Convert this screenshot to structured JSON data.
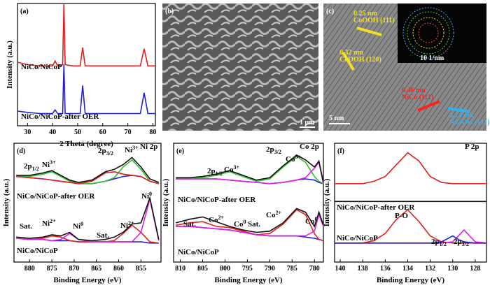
{
  "chart_data": [
    {
      "type": "line",
      "panel": "(a)",
      "xlabel": "2 Theta (degree)",
      "ylabel": "Intensity (a.u.)",
      "xlim": [
        26,
        81
      ],
      "xticks": [
        30,
        40,
        50,
        60,
        70,
        80
      ],
      "ylim": [
        0,
        100
      ],
      "x": [
        26,
        30,
        35,
        40,
        41,
        42,
        44,
        44.5,
        45,
        48,
        51,
        52,
        53,
        60,
        70,
        75,
        76.5,
        78,
        81
      ],
      "series": [
        {
          "color": "#e02020",
          "values": [
            52,
            50,
            49,
            49,
            53,
            49,
            50,
            100,
            50,
            49,
            49,
            64,
            49,
            49,
            49,
            49,
            63,
            49,
            49
          ]
        },
        {
          "color": "#2020d0",
          "values": [
            12,
            11,
            10,
            10,
            13,
            10,
            10,
            50,
            10,
            10,
            10,
            33,
            10,
            10,
            10,
            10,
            27,
            10,
            10
          ]
        }
      ],
      "annotations": [
        {
          "text": "NiCo/NiCoP"
        },
        {
          "text": "NiCo/NiCoP-after OER"
        }
      ]
    },
    {
      "type": "line",
      "panel": "(d)",
      "xlabel": "Binding Energy (eV)",
      "ylabel": "Intensity (a.u.)",
      "xlim": [
        883.5,
        850.5
      ],
      "xticks": [
        880,
        875,
        870,
        865,
        860,
        855
      ],
      "ylim": [
        0,
        100
      ],
      "x": [
        883,
        880,
        877,
        875,
        873,
        871,
        869,
        866,
        863,
        861,
        859,
        857,
        855,
        853,
        851
      ],
      "series": [
        {
          "color": "#2020d0",
          "values": [
            72,
            71,
            70,
            69,
            68,
            67,
            66,
            66,
            68,
            70,
            72,
            73,
            72,
            68,
            66
          ]
        },
        {
          "color": "#30c030",
          "values": [
            72,
            72,
            74,
            76,
            72,
            68,
            66,
            66,
            68,
            71,
            80,
            86,
            78,
            68,
            66
          ]
        },
        {
          "color": "#e02020",
          "values": [
            72,
            71,
            70,
            69,
            68,
            67,
            66,
            68,
            75,
            76,
            74,
            73,
            72,
            68,
            66
          ]
        },
        {
          "color": "#111111",
          "values": [
            73,
            73,
            75,
            77,
            73,
            69,
            67,
            69,
            76,
            78,
            82,
            88,
            80,
            70,
            67
          ]
        },
        {
          "color": "#2020d0",
          "values": [
            20,
            19,
            19,
            18,
            18,
            18,
            17,
            17,
            17,
            17,
            17,
            17,
            17,
            16,
            16
          ]
        },
        {
          "color": "#e02020",
          "values": [
            20,
            19,
            20,
            22,
            21,
            18,
            17,
            17,
            17,
            18,
            24,
            31,
            25,
            17,
            16
          ]
        },
        {
          "color": "#e020e0",
          "values": [
            20,
            19,
            19,
            18,
            19,
            24,
            19,
            17,
            17,
            17,
            17,
            17,
            25,
            53,
            18
          ]
        },
        {
          "color": "#111111",
          "values": [
            21,
            20,
            21,
            23,
            22,
            25,
            19,
            18,
            19,
            21,
            25,
            32,
            33,
            54,
            19
          ]
        }
      ],
      "annotations": [
        {
          "text": "Ni 2p"
        },
        {
          "text": "2p",
          "sub": "1/2"
        },
        {
          "text": "Ni",
          "sup": "3+"
        },
        {
          "text": "2p",
          "sub": "3/2"
        },
        {
          "text": "Ni",
          "sup": "3+"
        },
        {
          "text": "NiCo/NiCoP-after OER"
        },
        {
          "text": "Sat."
        },
        {
          "text": "Ni",
          "sup": "2+"
        },
        {
          "text": "Ni",
          "sup": "0"
        },
        {
          "text": "Sat."
        },
        {
          "text": "Ni",
          "sup": "2+"
        },
        {
          "text": "Ni",
          "sup": "0"
        },
        {
          "text": "NiCo/NiCoP"
        }
      ]
    },
    {
      "type": "line",
      "panel": "(e)",
      "xlabel": "Binding Energy (eV)",
      "ylabel": "Intensity (a.u.)",
      "xlim": [
        811.5,
        778
      ],
      "xticks": [
        810,
        805,
        800,
        795,
        790,
        785,
        780
      ],
      "ylim": [
        0,
        100
      ],
      "x": [
        811,
        808,
        805,
        802,
        799,
        796,
        793,
        790,
        787,
        784,
        782,
        780,
        779,
        778
      ],
      "series": [
        {
          "color": "#2020d0",
          "values": [
            70,
            70,
            70,
            70,
            69,
            68,
            67,
            66,
            67,
            69,
            70,
            69,
            67,
            66
          ]
        },
        {
          "color": "#30c030",
          "values": [
            70,
            70,
            71,
            73,
            76,
            72,
            68,
            70,
            80,
            89,
            84,
            72,
            68,
            66
          ]
        },
        {
          "color": "#e020e0",
          "values": [
            70,
            70,
            70,
            70,
            69,
            68,
            67,
            66,
            67,
            69,
            71,
            79,
            84,
            66
          ]
        },
        {
          "color": "#111111",
          "values": [
            71,
            71,
            72,
            74,
            77,
            73,
            69,
            71,
            81,
            90,
            86,
            80,
            85,
            67
          ]
        },
        {
          "color": "#2020d0",
          "values": [
            30,
            30,
            29,
            28,
            27,
            25,
            23,
            22,
            22,
            22,
            21,
            20,
            19,
            18
          ]
        },
        {
          "color": "#e02020",
          "values": [
            31,
            33,
            34,
            30,
            29,
            26,
            23,
            24,
            32,
            44,
            40,
            24,
            19,
            18
          ]
        },
        {
          "color": "#e020e0",
          "values": [
            30,
            30,
            29,
            28,
            27,
            25,
            23,
            22,
            22,
            22,
            22,
            26,
            40,
            30
          ]
        },
        {
          "color": "#111111",
          "values": [
            33,
            36,
            38,
            34,
            30,
            27,
            25,
            26,
            33,
            45,
            42,
            30,
            42,
            31
          ]
        }
      ],
      "annotations": [
        {
          "text": "Co 2p"
        },
        {
          "text": "2p",
          "sub": "1/2"
        },
        {
          "text": "Co",
          "sup": "3+"
        },
        {
          "text": "2p",
          "sub": "3/2"
        },
        {
          "text": "Co",
          "sup": "3+"
        },
        {
          "text": "NiCo/NiCoP-after OER"
        },
        {
          "text": "Sat."
        },
        {
          "text": "Co",
          "sup": "2+"
        },
        {
          "text": "Co",
          "sup": "0"
        },
        {
          "text": "Sat."
        },
        {
          "text": "Co",
          "sup": "2+"
        },
        {
          "text": "Co",
          "sup": "0"
        },
        {
          "text": "NiCo/NiCoP"
        }
      ]
    },
    {
      "type": "line",
      "panel": "(f)",
      "xlabel": "Binding Energy (eV)",
      "ylabel": "Intensity (a.u.)",
      "xlim": [
        140.5,
        127
      ],
      "xticks": [
        140,
        138,
        136,
        134,
        132,
        130,
        128
      ],
      "ylim": [
        0,
        100
      ],
      "x": [
        140.5,
        139,
        138,
        137,
        136,
        135,
        134,
        133,
        132,
        131,
        130,
        129.5,
        129,
        128,
        127
      ],
      "series": [
        {
          "color": "#e02020",
          "values": [
            66,
            66,
            66,
            68,
            72,
            82,
            92,
            85,
            72,
            67,
            66,
            66,
            66,
            66,
            66
          ]
        },
        {
          "color": "#111111",
          "values": [
            51,
            51,
            51,
            51,
            51,
            51,
            51,
            51,
            51,
            51,
            51,
            51,
            51,
            51,
            51
          ]
        },
        {
          "color": "#e02020",
          "values": [
            16,
            16,
            16,
            18,
            24,
            36,
            44,
            34,
            22,
            17,
            16,
            16,
            16,
            16,
            16
          ]
        },
        {
          "color": "#e020e0",
          "values": [
            16,
            16,
            16,
            16,
            16,
            16,
            16,
            16,
            16,
            16,
            17,
            22,
            27,
            17,
            16
          ]
        },
        {
          "color": "#2020d0",
          "values": [
            16,
            16,
            16,
            16,
            16,
            16,
            16,
            16,
            16,
            17,
            22,
            19,
            17,
            16,
            16
          ]
        }
      ],
      "annotations": [
        {
          "text": "P 2p"
        },
        {
          "text": "NiCo/NiCoP-after OER"
        },
        {
          "text": "P-O"
        },
        {
          "text": "2p",
          "sub": "1/2"
        },
        {
          "text": "2p",
          "sub": "3/2"
        },
        {
          "text": "NiCo/NiCoP"
        }
      ]
    }
  ],
  "images": [
    {
      "panel": "(b)",
      "annotations": [
        {
          "text": "1 μm",
          "color": "#ffffff"
        }
      ]
    },
    {
      "panel": "(c)",
      "annotations": [
        {
          "text": "0.25 nm",
          "color": "#f0e020"
        },
        {
          "text": "CoOOH (111)",
          "color": "#f0e020"
        },
        {
          "text": "0.32 nm",
          "color": "#f0e020"
        },
        {
          "text": "CoOOH (120)",
          "color": "#f0e020"
        },
        {
          "text": "0.46 nm",
          "color": "#ff2020"
        },
        {
          "text": "NiCo (111)",
          "color": "#ff2020"
        },
        {
          "text": "0.24 nm",
          "color": "#30b0f0"
        },
        {
          "text": "NiOOH (101)",
          "color": "#30b0f0"
        },
        {
          "text": "5 nm",
          "color": "#ffffff"
        },
        {
          "text": "10 1/nm",
          "color": "#ffffff"
        }
      ]
    }
  ]
}
